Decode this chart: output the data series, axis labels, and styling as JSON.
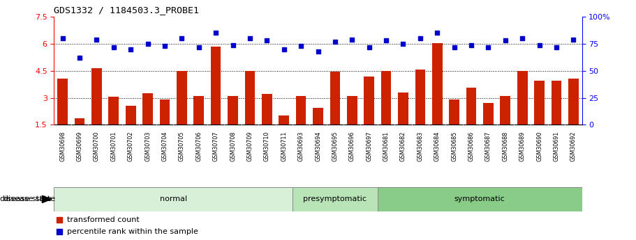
{
  "title": "GDS1332 / 1184503.3_PROBE1",
  "samples": [
    "GSM30698",
    "GSM30699",
    "GSM30700",
    "GSM30701",
    "GSM30702",
    "GSM30703",
    "GSM30704",
    "GSM30705",
    "GSM30706",
    "GSM30707",
    "GSM30708",
    "GSM30709",
    "GSM30710",
    "GSM30711",
    "GSM30693",
    "GSM30694",
    "GSM30695",
    "GSM30696",
    "GSM30697",
    "GSM30681",
    "GSM30682",
    "GSM30683",
    "GSM30684",
    "GSM30685",
    "GSM30686",
    "GSM30687",
    "GSM30688",
    "GSM30689",
    "GSM30690",
    "GSM30691",
    "GSM30692"
  ],
  "bar_values": [
    4.05,
    1.85,
    4.65,
    3.05,
    2.55,
    3.25,
    2.9,
    4.5,
    3.1,
    5.85,
    3.1,
    4.5,
    3.2,
    2.0,
    3.1,
    2.45,
    4.45,
    3.1,
    4.2,
    4.5,
    3.3,
    4.55,
    6.05,
    2.9,
    3.55,
    2.7,
    3.1,
    4.5,
    3.95,
    3.95,
    4.05
  ],
  "dot_values": [
    80,
    62,
    79,
    72,
    70,
    75,
    73,
    80,
    72,
    85,
    74,
    80,
    78,
    70,
    73,
    68,
    77,
    79,
    72,
    78,
    75,
    80,
    85,
    72,
    74,
    72,
    78,
    80,
    74,
    72,
    79
  ],
  "groups": [
    {
      "label": "normal",
      "start": 0,
      "end": 14
    },
    {
      "label": "presymptomatic",
      "start": 14,
      "end": 19
    },
    {
      "label": "symptomatic",
      "start": 19,
      "end": 31
    }
  ],
  "group_colors": [
    "#d8f0d8",
    "#b8e4b8",
    "#88cc88"
  ],
  "bar_color": "#cc2200",
  "dot_color": "#0000cc",
  "ylim_left": [
    1.5,
    7.5
  ],
  "ylim_right": [
    0,
    100
  ],
  "yticks_left": [
    1.5,
    3.0,
    4.5,
    6.0,
    7.5
  ],
  "yticks_right": [
    0,
    25,
    50,
    75,
    100
  ],
  "hlines": [
    3.0,
    4.5,
    6.0
  ]
}
